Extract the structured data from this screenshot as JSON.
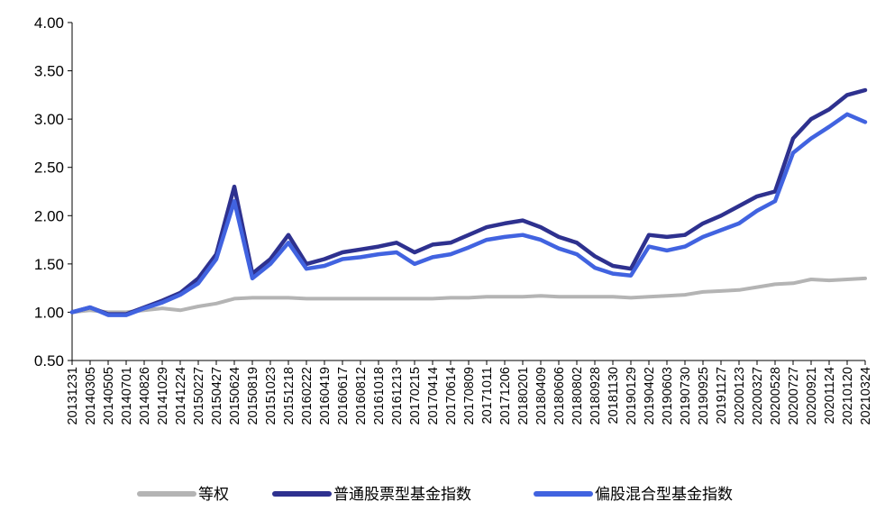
{
  "chart_data": {
    "type": "line",
    "title": "",
    "xlabel": "",
    "ylabel": "",
    "ylim": [
      0.5,
      4.0
    ],
    "yticks": [
      "0.50",
      "1.00",
      "1.50",
      "2.00",
      "2.50",
      "3.00",
      "3.50",
      "4.00"
    ],
    "grid": false,
    "legend_position": "bottom",
    "xticks": [
      "20131231",
      "20140305",
      "20140505",
      "20140701",
      "20140826",
      "20141029",
      "20141224",
      "20150227",
      "20150427",
      "20150624",
      "20150819",
      "20151023",
      "20151218",
      "20160222",
      "20160419",
      "20160617",
      "20160812",
      "20161018",
      "20161213",
      "20170215",
      "20170414",
      "20170614",
      "20170809",
      "20171011",
      "20171206",
      "20180201",
      "20180409",
      "20180606",
      "20180802",
      "20180928",
      "20181130",
      "20190129",
      "20190402",
      "20190603",
      "20190730",
      "20190925",
      "20191127",
      "20200123",
      "20200327",
      "20200528",
      "20200727",
      "20200921",
      "20201124",
      "20210120",
      "20210324"
    ],
    "series": [
      {
        "name": "等权",
        "color": "#B4B4B4",
        "values": [
          1.0,
          1.02,
          1.0,
          1.0,
          1.02,
          1.04,
          1.02,
          1.06,
          1.09,
          1.14,
          1.15,
          1.15,
          1.15,
          1.14,
          1.14,
          1.14,
          1.14,
          1.14,
          1.14,
          1.14,
          1.14,
          1.15,
          1.15,
          1.16,
          1.16,
          1.16,
          1.17,
          1.16,
          1.16,
          1.16,
          1.16,
          1.15,
          1.16,
          1.17,
          1.18,
          1.21,
          1.22,
          1.23,
          1.26,
          1.29,
          1.3,
          1.34,
          1.33,
          1.34,
          1.35
        ]
      },
      {
        "name": "普通股票型基金指数",
        "color": "#2E318F",
        "values": [
          1.0,
          1.05,
          0.98,
          0.98,
          1.05,
          1.12,
          1.2,
          1.35,
          1.6,
          2.3,
          1.4,
          1.55,
          1.8,
          1.5,
          1.55,
          1.62,
          1.65,
          1.68,
          1.72,
          1.62,
          1.7,
          1.72,
          1.8,
          1.88,
          1.92,
          1.95,
          1.88,
          1.78,
          1.72,
          1.58,
          1.48,
          1.45,
          1.8,
          1.78,
          1.8,
          1.92,
          2.0,
          2.1,
          2.2,
          2.25,
          2.8,
          3.0,
          3.1,
          3.25,
          3.3
        ]
      },
      {
        "name": "偏股混合型基金指数",
        "color": "#4163E0",
        "values": [
          1.0,
          1.05,
          0.97,
          0.97,
          1.04,
          1.1,
          1.18,
          1.3,
          1.55,
          2.15,
          1.35,
          1.5,
          1.72,
          1.45,
          1.48,
          1.55,
          1.57,
          1.6,
          1.62,
          1.5,
          1.57,
          1.6,
          1.67,
          1.75,
          1.78,
          1.8,
          1.75,
          1.66,
          1.6,
          1.46,
          1.4,
          1.38,
          1.68,
          1.64,
          1.68,
          1.78,
          1.85,
          1.92,
          2.05,
          2.15,
          2.65,
          2.8,
          2.92,
          3.05,
          2.97
        ]
      }
    ]
  }
}
